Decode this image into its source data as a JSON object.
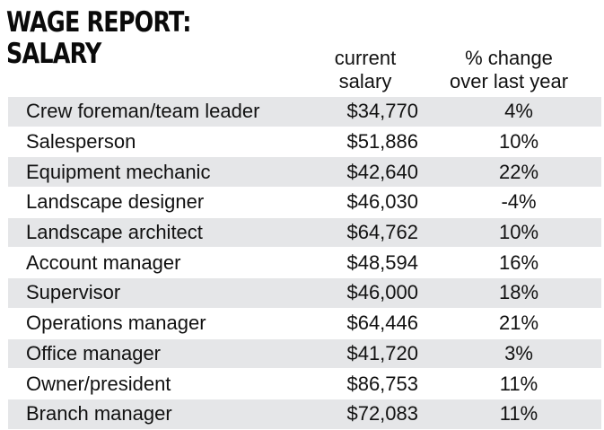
{
  "title_line1": "WAGE REPORT:",
  "title_line2": "SALARY",
  "headers": {
    "salary_line1": "current",
    "salary_line2": "salary",
    "change_line1": "% change",
    "change_line2": "over last year"
  },
  "colors": {
    "row_shade": "#e5e6e8",
    "text": "#111111"
  },
  "chart_data": {
    "type": "table",
    "columns": [
      "",
      "current salary",
      "% change over last year"
    ],
    "rows": [
      {
        "job": "Crew foreman/team leader",
        "salary": "$34,770",
        "change": "4%"
      },
      {
        "job": "Salesperson",
        "salary": "$51,886",
        "change": "10%"
      },
      {
        "job": "Equipment mechanic",
        "salary": "$42,640",
        "change": "22%"
      },
      {
        "job": "Landscape designer",
        "salary": "$46,030",
        "change": "-4%"
      },
      {
        "job": "Landscape architect",
        "salary": "$64,762",
        "change": "10%"
      },
      {
        "job": "Account manager",
        "salary": "$48,594",
        "change": "16%"
      },
      {
        "job": "Supervisor",
        "salary": "$46,000",
        "change": "18%"
      },
      {
        "job": "Operations manager",
        "salary": "$64,446",
        "change": "21%"
      },
      {
        "job": "Office manager",
        "salary": "$41,720",
        "change": "3%"
      },
      {
        "job": "Owner/president",
        "salary": "$86,753",
        "change": "11%"
      },
      {
        "job": "Branch manager",
        "salary": "$72,083",
        "change": "11%"
      }
    ]
  }
}
